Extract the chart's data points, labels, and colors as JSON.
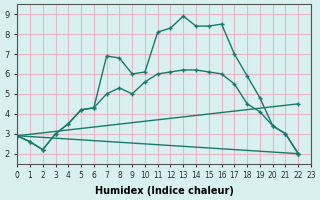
{
  "xlabel": "Humidex (Indice chaleur)",
  "ylabel": "",
  "bg_color": "#d8f0f0",
  "grid_color": "#e8b8c8",
  "line_color": "#1a7a6a",
  "xlim": [
    0,
    23
  ],
  "ylim": [
    1.5,
    9.5
  ],
  "xticks": [
    0,
    1,
    2,
    3,
    4,
    5,
    6,
    7,
    8,
    9,
    10,
    11,
    12,
    13,
    14,
    15,
    16,
    17,
    18,
    19,
    20,
    21,
    22,
    23
  ],
  "yticks": [
    2,
    3,
    4,
    5,
    6,
    7,
    8,
    9
  ],
  "line1": {
    "x": [
      0,
      1,
      2,
      3,
      4,
      5,
      6,
      7,
      8,
      9,
      10,
      11,
      12,
      13,
      14,
      15,
      16,
      17,
      18,
      19,
      20,
      21,
      22
    ],
    "y": [
      2.9,
      2.6,
      2.2,
      3.0,
      3.5,
      4.2,
      4.3,
      6.9,
      6.8,
      6.0,
      6.1,
      8.1,
      8.3,
      8.9,
      8.4,
      8.4,
      8.5,
      7.0,
      5.9,
      4.8,
      3.4,
      3.0,
      2.0
    ]
  },
  "line2": {
    "x": [
      0,
      1,
      2,
      3,
      4,
      5,
      6,
      7,
      8,
      9,
      10,
      11,
      12,
      13,
      14,
      15,
      16,
      17,
      18,
      19,
      20,
      21,
      22
    ],
    "y": [
      2.9,
      2.6,
      2.2,
      3.0,
      3.5,
      4.2,
      4.3,
      5.0,
      5.3,
      5.0,
      5.6,
      6.0,
      6.1,
      6.2,
      6.2,
      6.1,
      6.0,
      5.5,
      4.5,
      4.1,
      3.4,
      3.0,
      2.0
    ]
  },
  "line3": {
    "x": [
      0,
      22
    ],
    "y": [
      2.9,
      2.0
    ]
  },
  "line4": {
    "x": [
      0,
      22
    ],
    "y": [
      2.9,
      4.5
    ]
  }
}
